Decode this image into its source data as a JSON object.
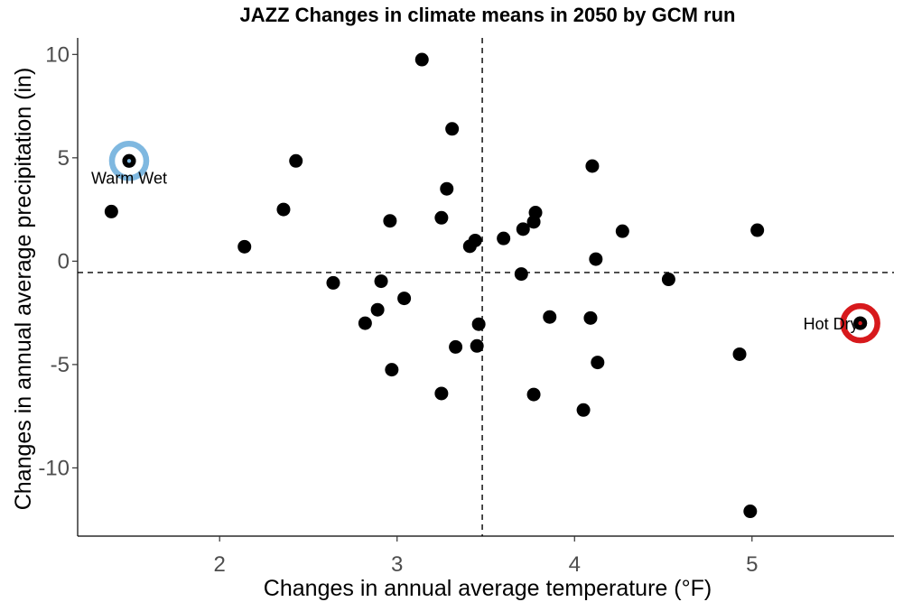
{
  "chart_data": {
    "type": "scatter",
    "title": "JAZZ Changes in climate means in 2050 by GCM run",
    "xlabel": "Changes in annual average temperature (°F)",
    "ylabel": "Changes in annual average precipitation (in)",
    "xlim": [
      1.2,
      5.8
    ],
    "ylim": [
      -13.3,
      10.8
    ],
    "xticks": [
      2,
      3,
      4,
      5
    ],
    "xtick_labels": [
      "2",
      "3",
      "4",
      "5"
    ],
    "yticks": [
      10,
      5,
      0,
      -5,
      -10
    ],
    "ytick_labels": [
      "10",
      "5",
      "0",
      "-5",
      "-10"
    ],
    "grid": false,
    "reference_lines": {
      "x": 3.48,
      "y": -0.55
    },
    "points": [
      {
        "x": 1.49,
        "y": 4.85
      },
      {
        "x": 1.39,
        "y": 2.4
      },
      {
        "x": 2.14,
        "y": 0.7
      },
      {
        "x": 2.36,
        "y": 2.5
      },
      {
        "x": 2.43,
        "y": 4.85
      },
      {
        "x": 2.64,
        "y": -1.05
      },
      {
        "x": 2.82,
        "y": -3.0
      },
      {
        "x": 2.89,
        "y": -2.35
      },
      {
        "x": 2.91,
        "y": -0.97
      },
      {
        "x": 2.96,
        "y": 1.95
      },
      {
        "x": 2.97,
        "y": -5.25
      },
      {
        "x": 3.04,
        "y": -1.8
      },
      {
        "x": 3.14,
        "y": 9.75
      },
      {
        "x": 3.25,
        "y": 2.1
      },
      {
        "x": 3.25,
        "y": -6.4
      },
      {
        "x": 3.28,
        "y": 3.5
      },
      {
        "x": 3.31,
        "y": 6.4
      },
      {
        "x": 3.33,
        "y": -4.15
      },
      {
        "x": 3.41,
        "y": 0.72
      },
      {
        "x": 3.44,
        "y": 1.0
      },
      {
        "x": 3.45,
        "y": -4.1
      },
      {
        "x": 3.46,
        "y": -3.05
      },
      {
        "x": 3.6,
        "y": 1.1
      },
      {
        "x": 3.7,
        "y": -0.62
      },
      {
        "x": 3.71,
        "y": 1.55
      },
      {
        "x": 3.77,
        "y": 1.9
      },
      {
        "x": 3.78,
        "y": 2.35
      },
      {
        "x": 3.77,
        "y": -6.45
      },
      {
        "x": 3.86,
        "y": -2.7
      },
      {
        "x": 4.05,
        "y": -7.2
      },
      {
        "x": 4.09,
        "y": -2.75
      },
      {
        "x": 4.1,
        "y": 4.6
      },
      {
        "x": 4.12,
        "y": 0.1
      },
      {
        "x": 4.13,
        "y": -4.9
      },
      {
        "x": 4.27,
        "y": 1.45
      },
      {
        "x": 4.53,
        "y": -0.88
      },
      {
        "x": 4.93,
        "y": -4.5
      },
      {
        "x": 4.99,
        "y": -12.1
      },
      {
        "x": 5.03,
        "y": 1.5
      },
      {
        "x": 5.61,
        "y": -3.0
      }
    ],
    "highlights": [
      {
        "label": "Warm Wet",
        "x": 1.49,
        "y": 4.85,
        "ring_color": "#7fb8e0",
        "text_anchor": "middle"
      },
      {
        "label": "Hot Dry",
        "x": 5.61,
        "y": -3.0,
        "ring_color": "#d7191c",
        "text_anchor": "end"
      }
    ]
  }
}
